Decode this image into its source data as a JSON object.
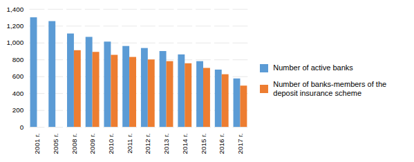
{
  "chart_data": {
    "type": "bar",
    "categories": [
      "2001 г.",
      "2005 г.",
      "2008 г.",
      "2009 г.",
      "2010 г.",
      "2011 г.",
      "2012 г.",
      "2013 г.",
      "2014 г.",
      "2015 г.",
      "2016 г.",
      "2017 г."
    ],
    "series": [
      {
        "name": "Number of active banks",
        "color": "#5B9BD5",
        "values": [
          1300,
          1255,
          1108,
          1068,
          1012,
          960,
          936,
          900,
          860,
          780,
          680,
          575
        ]
      },
      {
        "name": "Number of banks-members of the\ndeposit insurance scheme",
        "color": "#ED7D31",
        "values": [
          null,
          null,
          910,
          890,
          855,
          830,
          800,
          780,
          755,
          700,
          625,
          490
        ]
      }
    ],
    "ylim": [
      0,
      1400
    ],
    "yticks": [
      0,
      200,
      400,
      600,
      800,
      1000,
      1200,
      1400
    ],
    "grid": true,
    "legend": "right"
  }
}
